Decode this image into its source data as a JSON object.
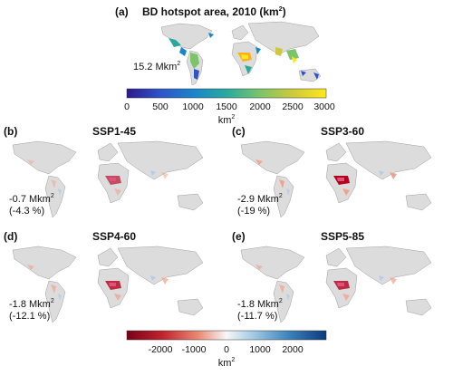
{
  "panel_a": {
    "letter": "(a)",
    "title": "BD hotspot area, 2010 (km",
    "title_sup": "2",
    "title_end": ")",
    "total_value": "15.2 Mkm",
    "total_sup": "2",
    "colorbar": {
      "ticks": [
        "0",
        "500",
        "1000",
        "1500",
        "2000",
        "2500",
        "3000"
      ],
      "unit": "km",
      "unit_sup": "2",
      "colors": [
        "#2b1a8c",
        "#2e55c8",
        "#1a86c9",
        "#2aaa9e",
        "#7cc46a",
        "#cdc93a",
        "#ffe81a"
      ]
    }
  },
  "panels": [
    {
      "letter": "(b)",
      "title": "SSP1-45",
      "change": "-0.7 Mkm",
      "sup": "2",
      "pct": "(-4.3 %)"
    },
    {
      "letter": "(c)",
      "title": "SSP3-60",
      "change": "-2.9 Mkm",
      "sup": "2",
      "pct": "(-19 %)"
    },
    {
      "letter": "(d)",
      "title": "SSP4-60",
      "change": "-1.8 Mkm",
      "sup": "2",
      "pct": "(-12.1 %)"
    },
    {
      "letter": "(e)",
      "title": "SSP5-85",
      "change": "-1.8 Mkm",
      "sup": "2",
      "pct": "(-11.7 %)"
    }
  ],
  "diff_colorbar": {
    "ticks": [
      "-2000",
      "-1000",
      "0",
      "1000",
      "2000"
    ],
    "unit": "km",
    "unit_sup": "2",
    "colors": [
      "#7a0018",
      "#c0242d",
      "#ea8b74",
      "#f7f7f7",
      "#9ec8e3",
      "#3b7fb8",
      "#0b3b7d"
    ]
  },
  "colors": {
    "land": "#dcdcdc",
    "coast": "#8a8a8a",
    "loss_strong": "#b3001e",
    "loss_mid": "#e0527a",
    "loss_light": "#f2a28c",
    "gain_light": "#a9cbe6"
  }
}
